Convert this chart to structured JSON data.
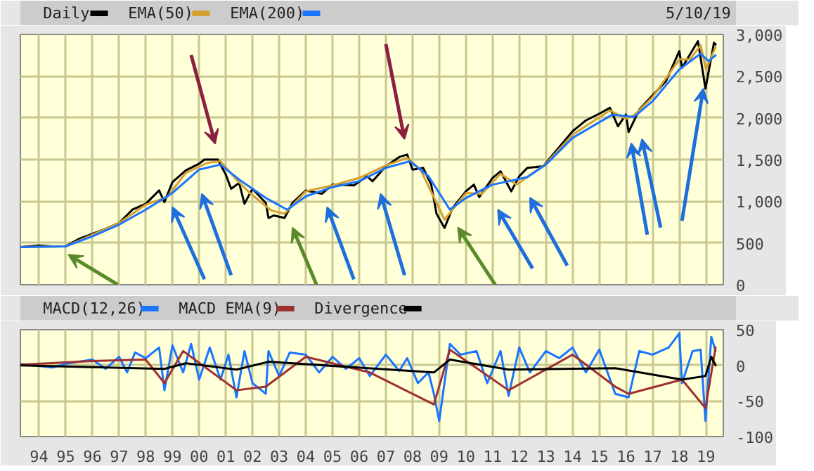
{
  "chart_data": [
    {
      "type": "line",
      "legend": "top",
      "grid": true,
      "tick_labels": "y",
      "annotations": [
        "5/10/19"
      ],
      "xlim": [
        1993.3,
        2019.65
      ],
      "ylim": [
        0,
        3000
      ],
      "yticks": [
        {
          "value": 0,
          "label": "0"
        },
        {
          "value": 500,
          "label": "500"
        },
        {
          "value": 1000,
          "label": "1,000"
        },
        {
          "value": 1500,
          "label": "1,500"
        },
        {
          "value": 2000,
          "label": "2,000"
        },
        {
          "value": 2500,
          "label": "2,500"
        },
        {
          "value": 3000,
          "label": "3,000"
        }
      ],
      "xticks": [
        {
          "value": 1994,
          "label": null
        },
        {
          "value": 1995,
          "label": null
        },
        {
          "value": 1996,
          "label": null
        },
        {
          "value": 1997,
          "label": null
        },
        {
          "value": 1998,
          "label": null
        },
        {
          "value": 1999,
          "label": null
        },
        {
          "value": 2000,
          "label": null
        },
        {
          "value": 2001,
          "label": null
        },
        {
          "value": 2002,
          "label": null
        },
        {
          "value": 2003,
          "label": null
        },
        {
          "value": 2004,
          "label": null
        },
        {
          "value": 2005,
          "label": null
        },
        {
          "value": 2006,
          "label": null
        },
        {
          "value": 2007,
          "label": null
        },
        {
          "value": 2008,
          "label": null
        },
        {
          "value": 2009,
          "label": null
        },
        {
          "value": 2010,
          "label": null
        },
        {
          "value": 2011,
          "label": null
        },
        {
          "value": 2012,
          "label": null
        },
        {
          "value": 2013,
          "label": null
        },
        {
          "value": 2014,
          "label": null
        },
        {
          "value": 2015,
          "label": null
        },
        {
          "value": 2016,
          "label": null
        },
        {
          "value": 2017,
          "label": null
        },
        {
          "value": 2018,
          "label": null
        },
        {
          "value": 2019,
          "label": null
        }
      ],
      "series": [
        {
          "name": "Daily",
          "color": "#000000",
          "x": [
            1993.3,
            1994.0,
            1994.5,
            1995.0,
            1995.5,
            1996.0,
            1996.5,
            1997.0,
            1997.5,
            1998.0,
            1998.5,
            1998.7,
            1999.0,
            1999.5,
            2000.0,
            2000.2,
            2000.7,
            2001.0,
            2001.2,
            2001.5,
            2001.7,
            2002.0,
            2002.5,
            2002.6,
            2002.8,
            2003.2,
            2003.5,
            2004.0,
            2004.6,
            2005.0,
            2005.8,
            2006.3,
            2006.5,
            2007.0,
            2007.5,
            2007.8,
            2008.0,
            2008.4,
            2008.7,
            2008.9,
            2009.2,
            2009.5,
            2010.0,
            2010.3,
            2010.5,
            2011.0,
            2011.3,
            2011.7,
            2012.0,
            2012.3,
            2012.9,
            2013.5,
            2014.0,
            2014.5,
            2015.0,
            2015.4,
            2015.7,
            2016.0,
            2016.1,
            2016.5,
            2017.0,
            2017.5,
            2018.0,
            2018.1,
            2018.7,
            2018.98,
            2019.3,
            2019.36
          ],
          "values": [
            450,
            470,
            460,
            460,
            550,
            610,
            670,
            740,
            900,
            970,
            1130,
            990,
            1230,
            1370,
            1450,
            1500,
            1500,
            1320,
            1150,
            1220,
            970,
            1150,
            980,
            800,
            830,
            800,
            980,
            1130,
            1090,
            1200,
            1190,
            1300,
            1240,
            1420,
            1530,
            1560,
            1380,
            1400,
            1200,
            850,
            680,
            920,
            1120,
            1200,
            1050,
            1280,
            1360,
            1120,
            1300,
            1400,
            1420,
            1650,
            1840,
            1970,
            2050,
            2120,
            1900,
            2040,
            1830,
            2100,
            2270,
            2440,
            2800,
            2600,
            2920,
            2350,
            2900,
            2880
          ]
        },
        {
          "name": "EMA(50)",
          "color": "#d4a030",
          "x": [
            1993.3,
            1995.0,
            1996.0,
            1997.0,
            1998.0,
            1998.8,
            1999.5,
            2000.3,
            2000.8,
            2001.4,
            2001.9,
            2002.7,
            2003.2,
            2004.0,
            2005.0,
            2006.0,
            2007.0,
            2007.8,
            2008.3,
            2009.2,
            2010.0,
            2010.6,
            2011.3,
            2011.9,
            2013.0,
            2014.0,
            2015.4,
            2016.0,
            2016.3,
            2017.0,
            2018.0,
            2018.4,
            2018.8,
            2019.0,
            2019.36
          ],
          "values": [
            450,
            460,
            600,
            740,
            960,
            1050,
            1340,
            1460,
            1480,
            1260,
            1100,
            890,
            850,
            1120,
            1190,
            1280,
            1430,
            1520,
            1380,
            780,
            1100,
            1090,
            1330,
            1200,
            1450,
            1800,
            2090,
            1990,
            2030,
            2250,
            2700,
            2700,
            2870,
            2580,
            2850
          ]
        },
        {
          "name": "EMA(200)",
          "color": "#1a75ff",
          "x": [
            1993.3,
            1995.0,
            1996.0,
            1997.0,
            1998.0,
            1999.0,
            2000.0,
            2000.8,
            2001.5,
            2002.5,
            2003.3,
            2004.0,
            2005.0,
            2006.0,
            2007.0,
            2007.9,
            2008.6,
            2009.4,
            2010.0,
            2011.0,
            2011.6,
            2012.3,
            2013.0,
            2014.0,
            2015.5,
            2016.3,
            2017.0,
            2018.0,
            2018.8,
            2019.1,
            2019.36
          ],
          "values": [
            450,
            460,
            580,
            720,
            900,
            1100,
            1380,
            1440,
            1260,
            1040,
            900,
            1060,
            1170,
            1240,
            1400,
            1480,
            1300,
            900,
            1040,
            1200,
            1240,
            1290,
            1440,
            1760,
            2040,
            2010,
            2200,
            2580,
            2770,
            2680,
            2750
          ]
        }
      ]
    },
    {
      "type": "line",
      "legend": "top",
      "grid": true,
      "xlim": [
        1993.3,
        2019.65
      ],
      "ylim": [
        -100,
        50
      ],
      "yticks": [
        -100,
        -50,
        0,
        50
      ],
      "xticks": [
        {
          "value": 1994,
          "label": "94"
        },
        {
          "value": 1995,
          "label": "95"
        },
        {
          "value": 1996,
          "label": "96"
        },
        {
          "value": 1997,
          "label": "97"
        },
        {
          "value": 1998,
          "label": "98"
        },
        {
          "value": 1999,
          "label": "99"
        },
        {
          "value": 2000,
          "label": "00"
        },
        {
          "value": 2001,
          "label": "01"
        },
        {
          "value": 2002,
          "label": "02"
        },
        {
          "value": 2003,
          "label": "03"
        },
        {
          "value": 2004,
          "label": "04"
        },
        {
          "value": 2005,
          "label": "05"
        },
        {
          "value": 2006,
          "label": "06"
        },
        {
          "value": 2007,
          "label": "07"
        },
        {
          "value": 2008,
          "label": "08"
        },
        {
          "value": 2009,
          "label": "09"
        },
        {
          "value": 2010,
          "label": "10"
        },
        {
          "value": 2011,
          "label": "11"
        },
        {
          "value": 2012,
          "label": "12"
        },
        {
          "value": 2013,
          "label": "13"
        },
        {
          "value": 2014,
          "label": "14"
        },
        {
          "value": 2015,
          "label": "15"
        },
        {
          "value": 2016,
          "label": "16"
        },
        {
          "value": 2017,
          "label": "17"
        },
        {
          "value": 2018,
          "label": "18"
        },
        {
          "value": 2019,
          "label": "19"
        }
      ],
      "series": [
        {
          "name": "MACD(12,26)",
          "color": "#1a75ff",
          "x": [
            1993.3,
            1994.5,
            1995.0,
            1995.5,
            1996.0,
            1996.5,
            1997.0,
            1997.3,
            1997.6,
            1998.0,
            1998.5,
            1998.7,
            1999.0,
            1999.4,
            1999.7,
            2000.0,
            2000.4,
            2000.8,
            2001.1,
            2001.4,
            2001.7,
            2002.0,
            2002.5,
            2002.6,
            2003.0,
            2003.4,
            2004.0,
            2004.5,
            2005.0,
            2005.5,
            2006.0,
            2006.4,
            2007.0,
            2007.5,
            2007.8,
            2008.2,
            2008.6,
            2008.8,
            2009.0,
            2009.4,
            2009.8,
            2010.4,
            2010.8,
            2011.3,
            2011.6,
            2012.0,
            2012.4,
            2013.0,
            2013.5,
            2014.0,
            2014.5,
            2015.0,
            2015.6,
            2016.1,
            2016.5,
            2017.0,
            2017.6,
            2018.0,
            2018.1,
            2018.5,
            2018.8,
            2018.98,
            2019.2,
            2019.36
          ],
          "values": [
            2,
            -3,
            2,
            5,
            8,
            -5,
            12,
            -10,
            18,
            10,
            25,
            -35,
            28,
            -10,
            30,
            -20,
            25,
            -20,
            15,
            -45,
            20,
            -25,
            -40,
            20,
            -15,
            18,
            15,
            -10,
            12,
            -5,
            10,
            -15,
            15,
            -8,
            10,
            -25,
            -10,
            -40,
            -78,
            30,
            15,
            20,
            -25,
            20,
            -43,
            25,
            -10,
            20,
            10,
            25,
            -10,
            22,
            -40,
            -45,
            20,
            15,
            25,
            45,
            -25,
            20,
            22,
            -78,
            40,
            20
          ]
        },
        {
          "name": "MACD EMA(9)",
          "color": "#a03030",
          "x": [
            1993.3,
            1996.0,
            1998.0,
            1998.7,
            1999.4,
            2001.4,
            2002.5,
            2004.0,
            2006.4,
            2008.8,
            2009.4,
            2011.6,
            2014.0,
            2015.6,
            2016.1,
            2018.1,
            2018.98,
            2019.36
          ],
          "values": [
            1,
            6,
            8,
            -25,
            20,
            -35,
            -30,
            12,
            -10,
            -55,
            22,
            -35,
            15,
            -30,
            -40,
            -20,
            -60,
            25
          ]
        },
        {
          "name": "Divergence",
          "color": "#000000",
          "x": [
            1993.3,
            1998.7,
            1999.5,
            2001.4,
            2002.6,
            2008.8,
            2009.4,
            2011.6,
            2015.6,
            2018.1,
            2018.98,
            2019.2,
            2019.36
          ],
          "values": [
            0,
            -5,
            3,
            -6,
            5,
            -10,
            8,
            -6,
            -4,
            -20,
            -15,
            12,
            0
          ]
        }
      ]
    }
  ]
}
